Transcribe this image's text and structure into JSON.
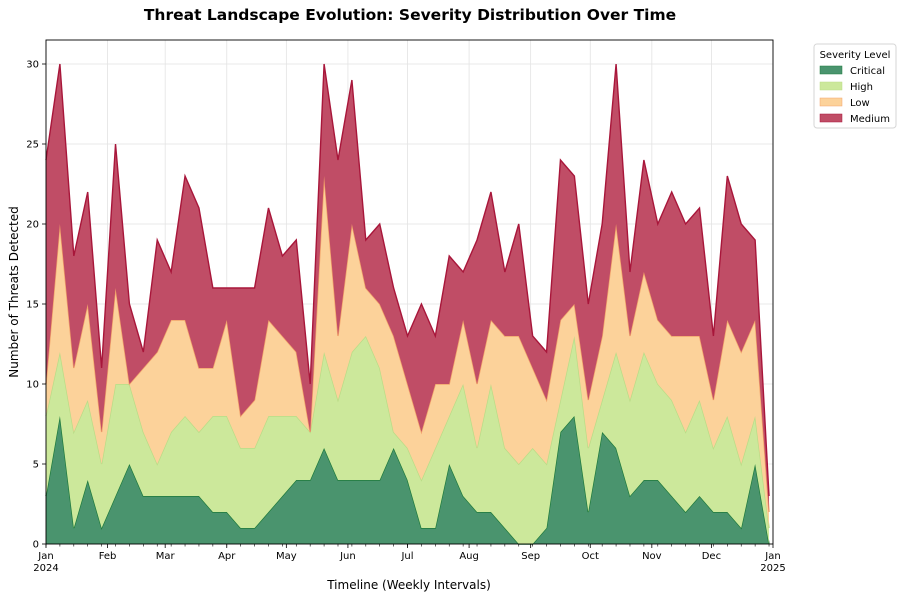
{
  "chart_data": {
    "type": "area",
    "stacked": true,
    "title": "Threat Landscape Evolution: Severity Distribution Over Time",
    "xlabel": "Timeline (Weekly Intervals)",
    "ylabel": "Number of Threats Detected",
    "ylim": [
      0,
      31.5
    ],
    "yticks": [
      0,
      5,
      10,
      15,
      20,
      25,
      30
    ],
    "xlim": [
      "2024-01-01",
      "2025-01-01"
    ],
    "xticks": [
      {
        "date": "2024-01-01",
        "label": "Jan",
        "sublabel": "2024"
      },
      {
        "date": "2024-02-01",
        "label": "Feb",
        "sublabel": ""
      },
      {
        "date": "2024-03-01",
        "label": "Mar",
        "sublabel": ""
      },
      {
        "date": "2024-04-01",
        "label": "Apr",
        "sublabel": ""
      },
      {
        "date": "2024-05-01",
        "label": "May",
        "sublabel": ""
      },
      {
        "date": "2024-06-01",
        "label": "Jun",
        "sublabel": ""
      },
      {
        "date": "2024-07-01",
        "label": "Jul",
        "sublabel": ""
      },
      {
        "date": "2024-08-01",
        "label": "Aug",
        "sublabel": ""
      },
      {
        "date": "2024-09-01",
        "label": "Sep",
        "sublabel": ""
      },
      {
        "date": "2024-10-01",
        "label": "Oct",
        "sublabel": ""
      },
      {
        "date": "2024-11-01",
        "label": "Nov",
        "sublabel": ""
      },
      {
        "date": "2024-12-01",
        "label": "Dec",
        "sublabel": ""
      },
      {
        "date": "2025-01-01",
        "label": "Jan",
        "sublabel": "2025"
      }
    ],
    "x_start": "2024-01-01",
    "x_interval_days": 7,
    "grid": true,
    "legend": {
      "title": "Severity Level",
      "position": "outside-top-right"
    },
    "series": [
      {
        "name": "Critical",
        "fill": "#4a946e",
        "stroke": "#1e7a3c",
        "values": [
          3,
          8,
          1,
          4,
          1,
          3,
          5,
          3,
          3,
          3,
          3,
          3,
          2,
          2,
          1,
          1,
          2,
          3,
          4,
          4,
          6,
          4,
          4,
          4,
          4,
          6,
          4,
          1,
          1,
          5,
          3,
          2,
          2,
          1,
          0,
          0,
          1,
          7,
          8,
          2,
          7,
          6,
          3,
          4,
          4,
          3,
          2,
          3,
          2,
          2,
          1,
          5,
          0
        ]
      },
      {
        "name": "High",
        "fill": "#cce89b",
        "stroke": "#b9dc86",
        "values": [
          5,
          4,
          6,
          5,
          4,
          7,
          5,
          4,
          2,
          4,
          5,
          4,
          6,
          6,
          5,
          5,
          6,
          5,
          4,
          3,
          6,
          5,
          8,
          9,
          7,
          1,
          2,
          3,
          5,
          3,
          7,
          4,
          8,
          5,
          5,
          6,
          4,
          2,
          5,
          4,
          2,
          6,
          6,
          8,
          6,
          6,
          5,
          6,
          4,
          6,
          4,
          3,
          1
        ]
      },
      {
        "name": "Low",
        "fill": "#fcd29a",
        "stroke": "#f2a36a",
        "values": [
          2,
          8,
          4,
          6,
          2,
          6,
          0,
          4,
          7,
          7,
          6,
          4,
          3,
          6,
          2,
          3,
          6,
          5,
          4,
          0,
          11,
          4,
          8,
          3,
          4,
          6,
          4,
          3,
          4,
          2,
          4,
          4,
          4,
          7,
          8,
          5,
          4,
          5,
          2,
          3,
          4,
          8,
          4,
          5,
          4,
          4,
          6,
          4,
          3,
          6,
          7,
          6,
          1
        ]
      },
      {
        "name": "Medium",
        "fill": "#c04d66",
        "stroke": "#a8163a",
        "values": [
          14,
          10,
          7,
          7,
          4,
          9,
          5,
          1,
          7,
          3,
          9,
          10,
          5,
          2,
          8,
          7,
          7,
          5,
          7,
          3,
          7,
          11,
          9,
          3,
          5,
          3,
          3,
          8,
          3,
          8,
          3,
          9,
          8,
          4,
          7,
          2,
          3,
          10,
          8,
          6,
          7,
          10,
          4,
          7,
          6,
          9,
          7,
          8,
          4,
          9,
          8,
          5,
          1
        ]
      }
    ]
  }
}
